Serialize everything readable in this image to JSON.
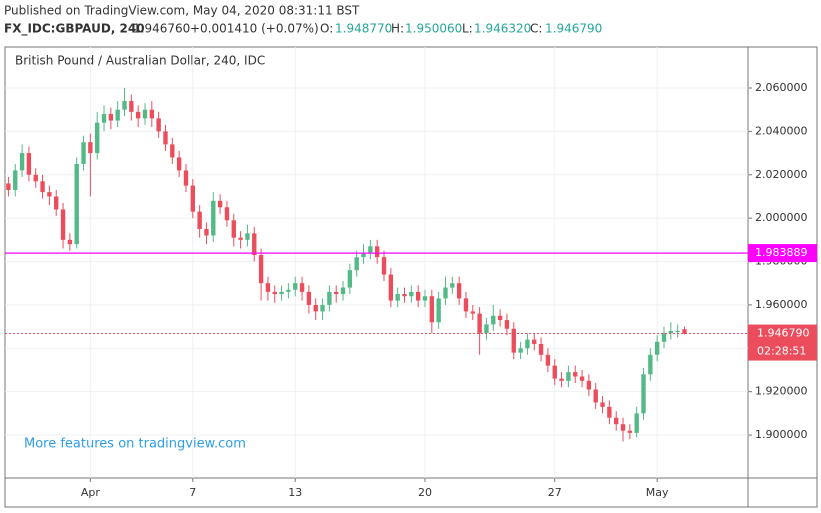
{
  "header": {
    "published": "Published on TradingView.com, May 04, 2020 08:31:11 BST",
    "symbol": "FX_IDC:GBPAUD, 240",
    "price": "1.946760",
    "change": "+0.001410 (+0.07%)",
    "o_label": "O:",
    "o": "1.948770",
    "h_label": "H:",
    "h": "1.950060",
    "l_label": "L:",
    "l": "1.946320",
    "c_label": "C:",
    "c": "1.946790"
  },
  "chart_data": {
    "type": "candlestick",
    "title": "British Pound / Australian Dollar, 240, IDC",
    "watermark": "More features on tradingview.com",
    "up_color": "#53b987",
    "down_color": "#eb4d5c",
    "grid": true,
    "open": [
      2.016,
      2.013,
      2.022,
      2.03,
      2.02,
      2.017,
      2.012,
      2.01,
      2.004,
      1.99,
      1.988,
      2.025,
      2.035,
      2.03,
      2.044,
      2.048,
      2.045,
      2.05,
      2.054,
      2.049,
      2.046,
      2.05,
      2.046,
      2.04,
      2.034,
      2.028,
      2.022,
      2.015,
      2.003,
      1.995,
      1.992,
      2.008,
      2.005,
      1.999,
      1.991,
      1.99,
      1.993,
      1.983,
      1.97,
      1.966,
      1.965,
      1.966,
      1.967,
      1.97,
      1.966,
      1.96,
      1.957,
      1.96,
      1.966,
      1.965,
      1.968,
      1.976,
      1.982,
      1.984,
      1.987,
      1.982,
      1.974,
      1.962,
      1.965,
      1.964,
      1.966,
      1.962,
      1.964,
      1.952,
      1.963,
      1.968,
      1.97,
      1.963,
      1.957,
      1.956,
      1.947,
      1.951,
      1.955,
      1.953,
      1.949,
      1.938,
      1.94,
      1.944,
      1.942,
      1.937,
      1.932,
      1.926,
      1.925,
      1.929,
      1.927,
      1.925,
      1.921,
      1.915,
      1.913,
      1.908,
      1.905,
      1.902,
      1.901,
      1.91,
      1.928,
      1.937,
      1.943,
      1.947,
      1.948,
      1.94877
    ],
    "high": [
      2.019,
      2.025,
      2.034,
      2.033,
      2.023,
      2.02,
      2.015,
      2.013,
      2.007,
      1.993,
      2.028,
      2.038,
      2.039,
      2.049,
      2.052,
      2.051,
      2.054,
      2.06,
      2.057,
      2.052,
      2.053,
      2.054,
      2.049,
      2.043,
      2.037,
      2.031,
      2.025,
      2.018,
      2.006,
      1.998,
      2.012,
      2.011,
      2.008,
      2.002,
      1.994,
      1.997,
      1.996,
      1.986,
      1.973,
      1.969,
      1.969,
      1.97,
      1.973,
      1.973,
      1.969,
      1.963,
      1.963,
      1.969,
      1.969,
      1.971,
      1.979,
      1.985,
      1.988,
      1.99,
      1.99,
      1.985,
      1.977,
      1.968,
      1.968,
      1.969,
      1.969,
      1.967,
      1.967,
      1.966,
      1.973,
      1.973,
      1.973,
      1.966,
      1.96,
      1.959,
      1.954,
      1.96,
      1.958,
      1.956,
      1.952,
      1.943,
      1.947,
      1.947,
      1.945,
      1.94,
      1.935,
      1.929,
      1.932,
      1.932,
      1.93,
      1.928,
      1.924,
      1.918,
      1.916,
      1.911,
      1.908,
      1.905,
      1.913,
      1.931,
      1.94,
      1.946,
      1.95,
      1.952,
      1.951,
      1.95006
    ],
    "low": [
      2.01,
      2.01,
      2.019,
      2.017,
      2.014,
      2.009,
      2.006,
      2.001,
      1.986,
      1.985,
      1.986,
      2.022,
      2.01,
      2.027,
      2.04,
      2.041,
      2.042,
      2.047,
      2.045,
      2.042,
      2.043,
      2.042,
      2.037,
      2.031,
      2.025,
      2.019,
      2.012,
      2.0,
      1.991,
      1.988,
      1.989,
      2.002,
      1.996,
      1.987,
      1.986,
      1.987,
      1.98,
      1.962,
      1.962,
      1.961,
      1.962,
      1.963,
      1.964,
      1.962,
      1.956,
      1.953,
      1.953,
      1.957,
      1.961,
      1.962,
      1.965,
      1.973,
      1.979,
      1.981,
      1.979,
      1.971,
      1.959,
      1.959,
      1.961,
      1.961,
      1.959,
      1.959,
      1.947,
      1.949,
      1.96,
      1.965,
      1.96,
      1.954,
      1.953,
      1.937,
      1.944,
      1.948,
      1.95,
      1.946,
      1.935,
      1.935,
      1.937,
      1.939,
      1.934,
      1.929,
      1.923,
      1.922,
      1.922,
      1.924,
      1.922,
      1.918,
      1.912,
      1.91,
      1.905,
      1.902,
      1.897,
      1.898,
      1.899,
      1.907,
      1.925,
      1.934,
      1.94,
      1.944,
      1.945,
      1.94632
    ],
    "close": [
      2.013,
      2.022,
      2.03,
      2.02,
      2.017,
      2.012,
      2.01,
      2.004,
      1.99,
      1.988,
      2.025,
      2.035,
      2.03,
      2.044,
      2.048,
      2.045,
      2.05,
      2.054,
      2.049,
      2.046,
      2.05,
      2.046,
      2.04,
      2.034,
      2.028,
      2.022,
      2.015,
      2.003,
      1.995,
      1.992,
      2.008,
      2.005,
      1.999,
      1.991,
      1.99,
      1.993,
      1.983,
      1.97,
      1.966,
      1.965,
      1.966,
      1.967,
      1.97,
      1.966,
      1.96,
      1.957,
      1.96,
      1.966,
      1.965,
      1.968,
      1.976,
      1.982,
      1.984,
      1.987,
      1.982,
      1.974,
      1.962,
      1.965,
      1.964,
      1.966,
      1.962,
      1.964,
      1.952,
      1.963,
      1.968,
      1.97,
      1.963,
      1.957,
      1.956,
      1.947,
      1.951,
      1.955,
      1.953,
      1.949,
      1.938,
      1.94,
      1.944,
      1.942,
      1.937,
      1.932,
      1.926,
      1.925,
      1.929,
      1.927,
      1.925,
      1.921,
      1.915,
      1.913,
      1.908,
      1.905,
      1.902,
      1.901,
      1.91,
      1.928,
      1.937,
      1.943,
      1.947,
      1.948,
      1.948,
      1.94679
    ],
    "xlim": [
      -0.5,
      108.3
    ],
    "xticks": [
      {
        "value": 12,
        "label": "Apr"
      },
      {
        "value": 27,
        "label": "7"
      },
      {
        "value": 42,
        "label": "13"
      },
      {
        "value": 61,
        "label": "20"
      },
      {
        "value": 80,
        "label": "27"
      },
      {
        "value": 95,
        "label": "May"
      }
    ],
    "ylim": [
      1.8802,
      2.0789
    ],
    "yticks": [
      {
        "value": 1.9,
        "label": "1.900000"
      },
      {
        "value": 1.92,
        "label": "1.920000"
      },
      {
        "value": 1.94,
        "label": "1.940000"
      },
      {
        "value": 1.96,
        "label": "1.960000"
      },
      {
        "value": 1.98,
        "label": "1.980000"
      },
      {
        "value": 2.0,
        "label": "2.000000"
      },
      {
        "value": 2.02,
        "label": "2.020000"
      },
      {
        "value": 2.04,
        "label": "2.040000"
      },
      {
        "value": 2.06,
        "label": "2.060000"
      }
    ],
    "hline": {
      "value": 1.983889,
      "label": "1.983889",
      "color": "#ff00ff"
    },
    "last_price": {
      "value": 1.94679,
      "label": "1.946790",
      "countdown": "02:28:51",
      "color": "#eb4d5c"
    }
  }
}
